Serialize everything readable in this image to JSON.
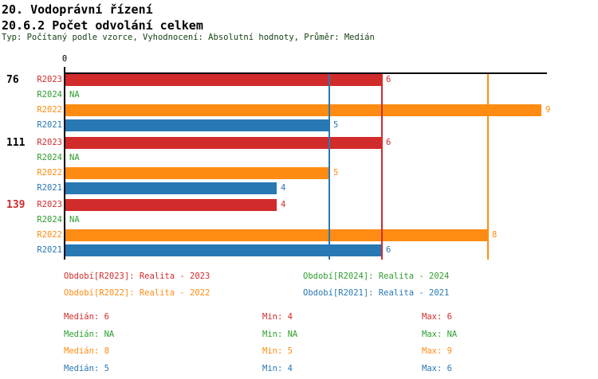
{
  "header": {
    "title_line1": "20. Vodoprávní řízení",
    "title_line2": "20.6.2 Počet odvolání celkem",
    "subtitle": "Typ: Počítaný podle vzorce, Vyhodnocení: Absolutní hodnoty, Průměr: Medián"
  },
  "colors": {
    "red": "#d22b2b",
    "green": "#2e9e2e",
    "orange": "#ff8c12",
    "blue": "#2878b4",
    "axis": "#000000",
    "title_text": "#000000",
    "subtitle_text": "#123f12"
  },
  "chart_data": {
    "type": "bar",
    "orientation": "horizontal",
    "x_axis": {
      "origin_label": "0",
      "min": 0,
      "max_visible": 9,
      "grid": false
    },
    "na_text": "NA",
    "series": [
      {
        "id": "R2023",
        "color_key": "red",
        "legend_label": "Období[R2023]: Realita - 2023",
        "median": "6",
        "min": "4",
        "max": "6"
      },
      {
        "id": "R2024",
        "color_key": "green",
        "legend_label": "Období[R2024]: Realita - 2024",
        "median": "NA",
        "min": "NA",
        "max": "NA"
      },
      {
        "id": "R2022",
        "color_key": "orange",
        "legend_label": "Období[R2022]: Realita - 2022",
        "median": "8",
        "min": "5",
        "max": "9"
      },
      {
        "id": "R2021",
        "color_key": "blue",
        "legend_label": "Období[R2021]: Realita - 2021",
        "median": "5",
        "min": "4",
        "max": "6"
      }
    ],
    "groups": [
      {
        "label": "76",
        "label_color_key": "axis",
        "bars": [
          {
            "series": "R2023",
            "value": 6
          },
          {
            "series": "R2024",
            "value": null
          },
          {
            "series": "R2022",
            "value": 9
          },
          {
            "series": "R2021",
            "value": 5
          }
        ]
      },
      {
        "label": "111",
        "label_color_key": "axis",
        "bars": [
          {
            "series": "R2023",
            "value": 6
          },
          {
            "series": "R2024",
            "value": null
          },
          {
            "series": "R2022",
            "value": 5
          },
          {
            "series": "R2021",
            "value": 4
          }
        ]
      },
      {
        "label": "139",
        "label_color_key": "red",
        "bars": [
          {
            "series": "R2023",
            "value": 4
          },
          {
            "series": "R2024",
            "value": null
          },
          {
            "series": "R2022",
            "value": 8
          },
          {
            "series": "R2021",
            "value": 6
          }
        ]
      }
    ],
    "reference_lines": [
      {
        "color_key": "blue",
        "value": 5
      },
      {
        "color_key": "red",
        "value": 6
      },
      {
        "color_key": "orange",
        "value": 8
      }
    ]
  },
  "legend": {
    "rows": [
      [
        "R2023",
        "R2024"
      ],
      [
        "R2022",
        "R2021"
      ]
    ]
  },
  "stats": {
    "median_label": "Medián",
    "min_label": "Min",
    "max_label": "Max",
    "row_order": [
      "R2023",
      "R2024",
      "R2022",
      "R2021"
    ]
  }
}
